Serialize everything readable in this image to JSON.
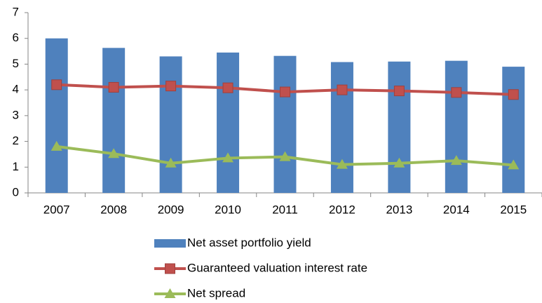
{
  "chart_data": {
    "type": "bar",
    "categories": [
      "2007",
      "2008",
      "2009",
      "2010",
      "2011",
      "2012",
      "2013",
      "2014",
      "2015"
    ],
    "series": [
      {
        "name": "Net asset portfolio yield",
        "type": "bar",
        "color": "#4f81bd",
        "values": [
          6.0,
          5.63,
          5.3,
          5.45,
          5.32,
          5.08,
          5.1,
          5.13,
          4.9
        ]
      },
      {
        "name": "Guaranteed valuation interest rate",
        "type": "line",
        "marker": "square",
        "color": "#c0504d",
        "values": [
          4.2,
          4.1,
          4.15,
          4.08,
          3.92,
          4.0,
          3.96,
          3.9,
          3.82
        ]
      },
      {
        "name": "Net spread",
        "type": "line",
        "marker": "triangle",
        "color": "#9bbb59",
        "values": [
          1.8,
          1.52,
          1.15,
          1.35,
          1.4,
          1.1,
          1.15,
          1.25,
          1.08
        ]
      }
    ],
    "ylim": [
      0,
      7
    ],
    "yticks": [
      0,
      1,
      2,
      3,
      4,
      5,
      6,
      7
    ],
    "grid": false,
    "legend": "bottom"
  }
}
